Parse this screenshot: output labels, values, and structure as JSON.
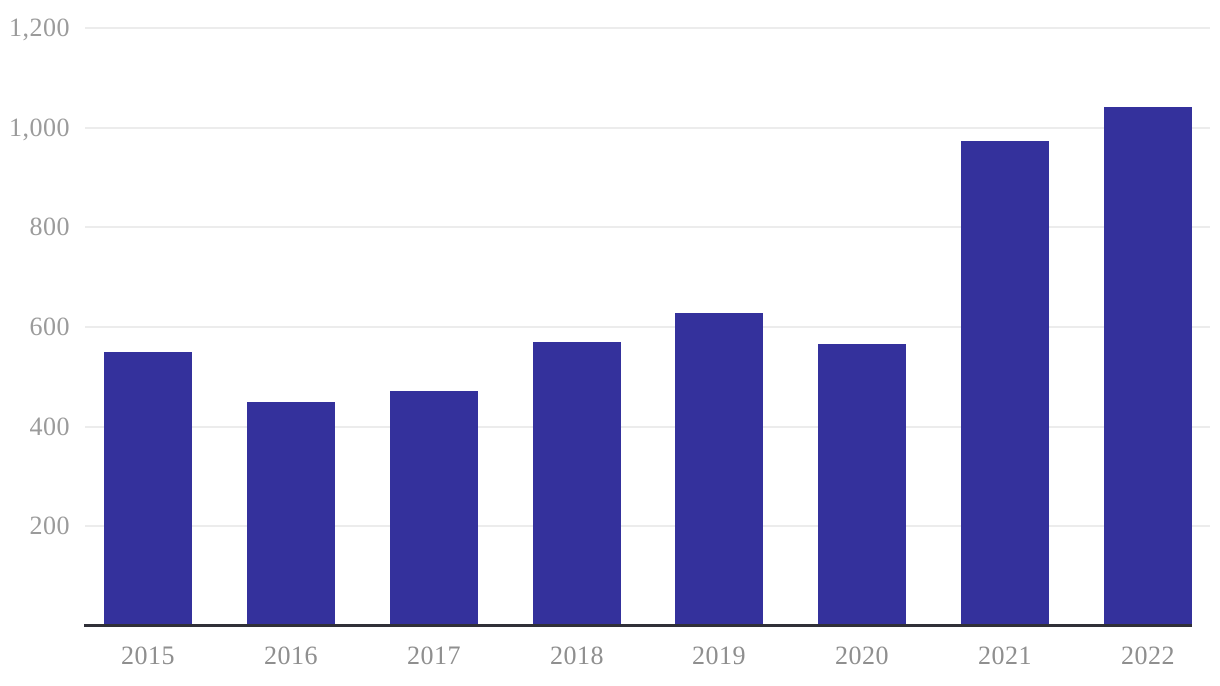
{
  "chart_data": {
    "type": "bar",
    "title": "",
    "xlabel": "",
    "ylabel": "",
    "categories": [
      "2015",
      "2016",
      "2017",
      "2018",
      "2019",
      "2020",
      "2021",
      "2022"
    ],
    "values": [
      550,
      450,
      472,
      570,
      628,
      566,
      973,
      1042
    ],
    "ylim": [
      0,
      1200
    ],
    "yticks": [
      200,
      400,
      600,
      800,
      1000,
      1200
    ],
    "ytick_labels": [
      "200",
      "400",
      "600",
      "800",
      "1,000",
      "1,200"
    ],
    "grid": true,
    "legend": false,
    "colors": {
      "bar": "#34319c",
      "gridline": "#ececec",
      "axis_line": "#303038",
      "y_tick_label": "#9b9b9b",
      "x_tick_label": "#8f8f8f",
      "background": "#ffffff"
    }
  }
}
